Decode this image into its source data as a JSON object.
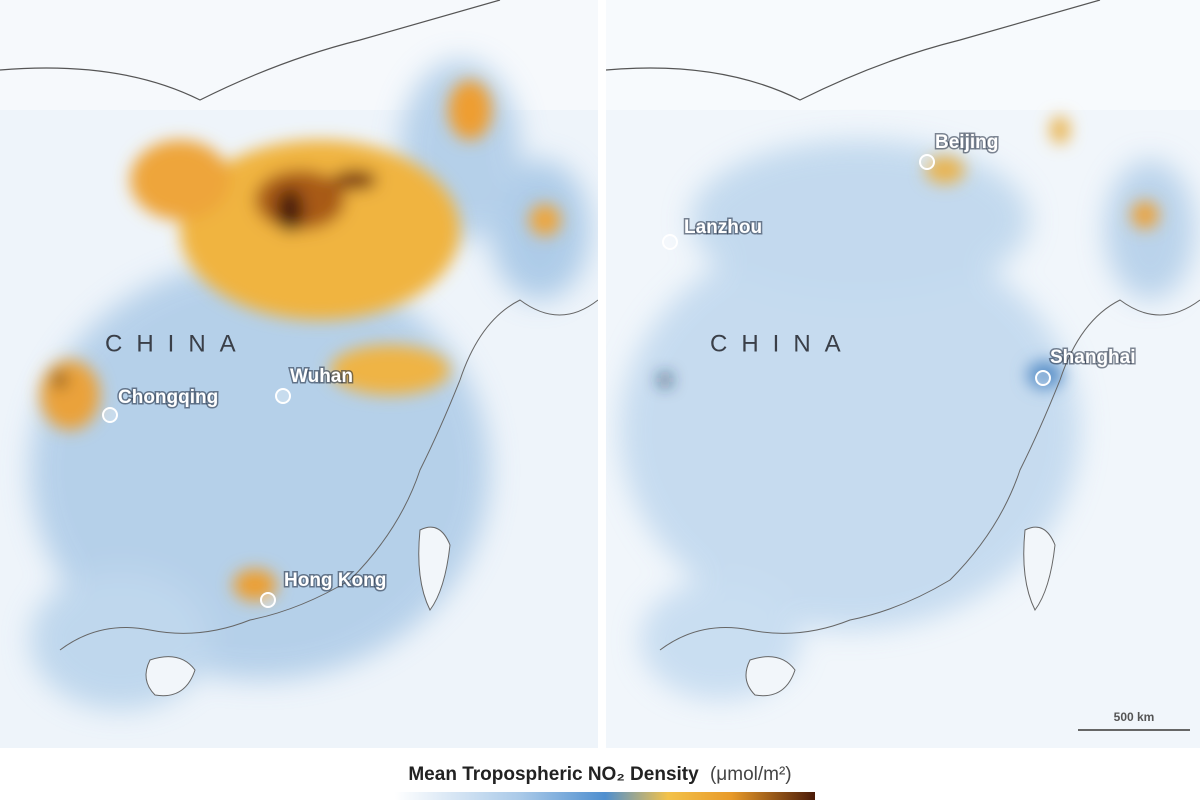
{
  "panels": [
    {
      "country_label": "CHINA",
      "cities": [
        {
          "name": "Chongqing"
        },
        {
          "name": "Wuhan"
        },
        {
          "name": "Hong Kong"
        }
      ]
    },
    {
      "country_label": "CHINA",
      "cities": [
        {
          "name": "Beijing"
        },
        {
          "name": "Lanzhou"
        },
        {
          "name": "Shanghai"
        }
      ]
    }
  ],
  "scale_bar": "500 km",
  "legend": {
    "title": "Mean Tropospheric NO₂ Density",
    "unit": "(μmol/m²)"
  }
}
